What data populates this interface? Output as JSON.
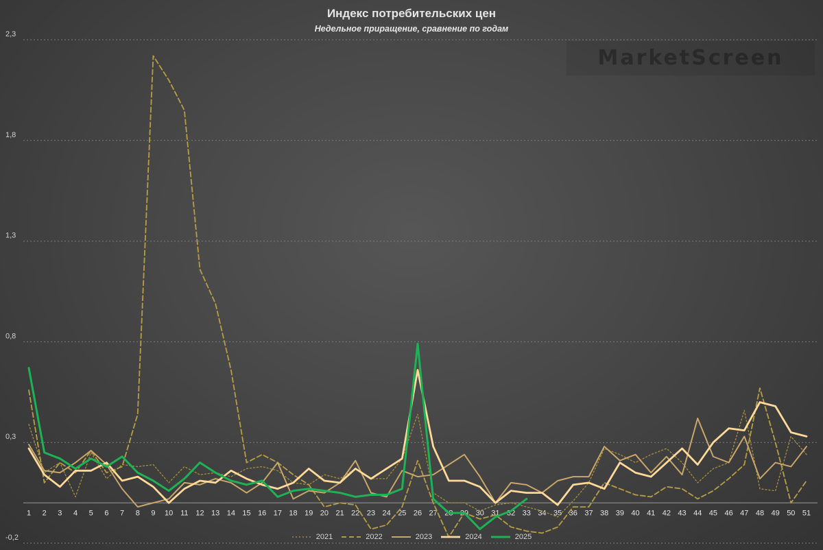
{
  "chart_data": {
    "type": "line",
    "title": "Индекс потребительских цен",
    "subtitle": "Недельное приращение, сравнение по годам",
    "watermark": "MarketScreen",
    "xlabel": "",
    "ylabel": "",
    "x": [
      1,
      2,
      3,
      4,
      5,
      6,
      7,
      8,
      9,
      10,
      11,
      12,
      13,
      14,
      15,
      16,
      17,
      18,
      19,
      20,
      21,
      22,
      23,
      24,
      25,
      26,
      27,
      28,
      29,
      30,
      31,
      32,
      33,
      34,
      35,
      36,
      37,
      38,
      39,
      40,
      41,
      42,
      43,
      44,
      45,
      46,
      47,
      48,
      49,
      50,
      51
    ],
    "ylim": [
      -0.2,
      2.3
    ],
    "yticks": [
      -0.2,
      0.3,
      0.8,
      1.3,
      1.8,
      2.3
    ],
    "ytick_labels": [
      "-0,2",
      "0,3",
      "0,8",
      "1,3",
      "1,8",
      "2,3"
    ],
    "grid": "horizontal dashed",
    "legend_position": "bottom",
    "series": [
      {
        "name": "2021",
        "style": "dotted",
        "color": "#a08a3c",
        "width": 1.4,
        "values": [
          0.39,
          0.15,
          0.2,
          0.03,
          0.25,
          0.12,
          0.19,
          0.18,
          0.19,
          0.1,
          0.18,
          0.14,
          0.15,
          0.13,
          0.17,
          0.18,
          0.16,
          0.1,
          0.09,
          0.14,
          0.12,
          0.17,
          0.12,
          0.12,
          0.22,
          0.44,
          0.05,
          0.0,
          0.0,
          -0.04,
          -0.01,
          0.0,
          -0.02,
          -0.04,
          -0.07,
          0.01,
          0.1,
          0.27,
          0.24,
          0.2,
          0.24,
          0.27,
          0.2,
          0.1,
          0.17,
          0.2,
          0.46,
          0.07,
          0.06,
          0.33,
          0.24
        ]
      },
      {
        "name": "2022",
        "style": "dashed",
        "color": "#b39a45",
        "width": 1.9,
        "values": [
          0.56,
          0.1,
          0.2,
          0.15,
          0.26,
          0.15,
          0.18,
          0.44,
          2.22,
          2.1,
          1.95,
          1.16,
          0.99,
          0.66,
          0.2,
          0.24,
          0.2,
          0.14,
          0.09,
          -0.02,
          0.0,
          -0.01,
          -0.13,
          -0.11,
          -0.02,
          0.21,
          0.0,
          -0.17,
          -0.05,
          -0.08,
          -0.06,
          -0.12,
          -0.14,
          -0.15,
          -0.12,
          -0.02,
          -0.02,
          0.1,
          0.07,
          0.04,
          0.03,
          0.08,
          0.07,
          0.02,
          0.06,
          0.12,
          0.19,
          0.57,
          0.3,
          0.0,
          0.11
        ]
      },
      {
        "name": "2023",
        "style": "solid",
        "color": "#c9a66b",
        "width": 2.0,
        "values": [
          0.29,
          0.16,
          0.15,
          0.2,
          0.26,
          0.19,
          0.07,
          -0.02,
          0.0,
          0.02,
          0.1,
          0.09,
          0.12,
          0.1,
          0.05,
          0.1,
          0.2,
          0.02,
          0.06,
          0.05,
          0.1,
          0.21,
          0.05,
          0.03,
          0.16,
          0.13,
          0.14,
          0.19,
          0.24,
          0.13,
          0.0,
          0.1,
          0.09,
          0.05,
          0.11,
          0.13,
          0.13,
          0.28,
          0.21,
          0.24,
          0.15,
          0.23,
          0.14,
          0.42,
          0.23,
          0.2,
          0.33,
          0.12,
          0.2,
          0.18,
          0.28
        ]
      },
      {
        "name": "2024",
        "style": "solid",
        "color": "#ffd99a",
        "width": 2.8,
        "values": [
          0.27,
          0.14,
          0.08,
          0.16,
          0.16,
          0.2,
          0.11,
          0.13,
          0.08,
          0.0,
          0.07,
          0.11,
          0.1,
          0.16,
          0.12,
          0.09,
          0.07,
          0.1,
          0.17,
          0.11,
          0.1,
          0.17,
          0.12,
          0.17,
          0.22,
          0.66,
          0.28,
          0.11,
          0.11,
          0.08,
          0.0,
          0.06,
          0.05,
          0.05,
          -0.01,
          0.09,
          0.1,
          0.07,
          0.2,
          0.15,
          0.13,
          0.2,
          0.27,
          0.19,
          0.3,
          0.37,
          0.36,
          0.5,
          0.48,
          0.35,
          0.33
        ]
      },
      {
        "name": "2025",
        "style": "solid",
        "color": "#1fb155",
        "width": 3.0,
        "values": [
          0.67,
          0.25,
          0.22,
          0.17,
          0.22,
          0.18,
          0.23,
          0.15,
          0.11,
          0.06,
          0.12,
          0.2,
          0.15,
          0.11,
          0.09,
          0.11,
          0.03,
          0.06,
          0.07,
          0.06,
          0.05,
          0.03,
          0.04,
          0.04,
          0.07,
          0.79,
          0.02,
          -0.05,
          -0.05,
          -0.13,
          -0.07,
          -0.04,
          0.02,
          null,
          null,
          null,
          null,
          null,
          null,
          null,
          null,
          null,
          null,
          null,
          null,
          null,
          null,
          null,
          null,
          null,
          null
        ]
      }
    ]
  }
}
